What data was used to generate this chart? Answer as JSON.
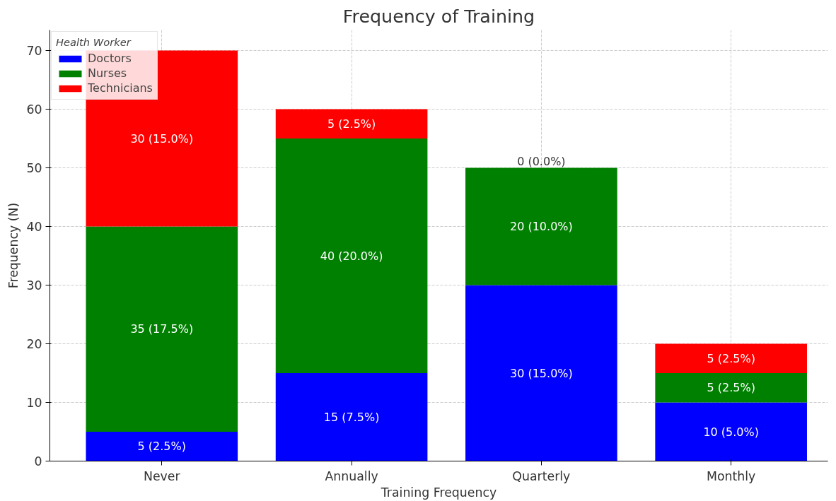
{
  "chart_data": {
    "type": "bar",
    "stacked": true,
    "title": "Frequency of Training",
    "xlabel": "Training Frequency",
    "ylabel": "Frequency (N)",
    "legend_title": "Health Worker",
    "categories": [
      "Never",
      "Annually",
      "Quarterly",
      "Monthly"
    ],
    "series": [
      {
        "name": "Doctors",
        "color": "#0000ff",
        "values": [
          5,
          15,
          30,
          10
        ],
        "value_labels": [
          "5 (2.5%)",
          "15 (7.5%)",
          "30 (15.0%)",
          "10 (5.0%)"
        ]
      },
      {
        "name": "Nurses",
        "color": "#008000",
        "values": [
          35,
          40,
          20,
          5
        ],
        "value_labels": [
          "35 (17.5%)",
          "40 (20.0%)",
          "20 (10.0%)",
          "5 (2.5%)"
        ]
      },
      {
        "name": "Technicians",
        "color": "#ff0000",
        "values": [
          30,
          5,
          0,
          5
        ],
        "value_labels": [
          "30 (15.0%)",
          "5 (2.5%)",
          "0 (0.0%)",
          "5 (2.5%)"
        ]
      }
    ],
    "ylim": [
      0,
      73.5
    ],
    "yticks": [
      0,
      10,
      20,
      30,
      40,
      50,
      60,
      70
    ],
    "grid": true,
    "legend": "top left"
  }
}
